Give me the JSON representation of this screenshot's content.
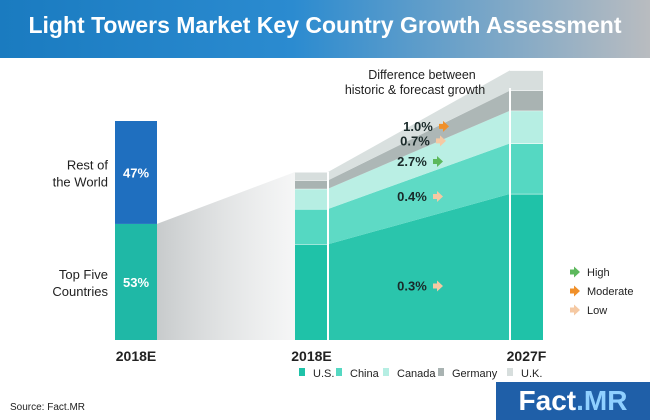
{
  "title": "Light Towers Market Key Country Growth Assessment",
  "source": "Source: Fact.MR",
  "logo": {
    "part1": "Fact",
    "part2": ".MR"
  },
  "annotation": {
    "line1": "Difference between",
    "line2": "historic & forecast growth"
  },
  "colors": {
    "header_blue": "#1a7bc0",
    "rest_of_world": "#1f6fbf",
    "top_five": "#1fb8a6",
    "us": "#1fc2a8",
    "china": "#55d8c2",
    "canada": "#b6eee3",
    "germany": "#a9b3b2",
    "uk": "#d7dedd",
    "high": "#5cb85c",
    "moderate": "#f0902a",
    "low": "#f5c9a3"
  },
  "chart_data": [
    {
      "type": "bar",
      "categories": [
        "2018E"
      ],
      "series": [
        {
          "name": "Top Five Countries",
          "values": [
            53
          ],
          "label": "53%"
        },
        {
          "name": "Rest of the World",
          "values": [
            47
          ],
          "label": "47%"
        }
      ],
      "ylim": [
        0,
        100
      ],
      "segment_labels": [
        {
          "line1": "Top Five",
          "line2": "Countries"
        },
        {
          "line1": "Rest of",
          "line2": "the World"
        }
      ]
    },
    {
      "type": "area",
      "categories": [
        "2018E",
        "2027F"
      ],
      "series": [
        {
          "name": "U.S.",
          "values": [
            57,
            58
          ],
          "growth_label": "0.3%",
          "growth_level": "low"
        },
        {
          "name": "China",
          "values": [
            21,
            20
          ],
          "growth_label": "0.4%",
          "growth_level": "low"
        },
        {
          "name": "Canada",
          "values": [
            12,
            13
          ],
          "growth_label": "2.7%",
          "growth_level": "high"
        },
        {
          "name": "Germany",
          "values": [
            5,
            8
          ],
          "growth_label": "0.7%",
          "growth_level": "low"
        },
        {
          "name": "U.K.",
          "values": [
            5,
            8
          ],
          "growth_label": "1.0%",
          "growth_level": "moderate"
        }
      ],
      "ylim": [
        0,
        100
      ]
    }
  ],
  "growth_legend": [
    {
      "label": "High",
      "level": "high"
    },
    {
      "label": "Moderate",
      "level": "moderate"
    },
    {
      "label": "Low",
      "level": "low"
    }
  ]
}
